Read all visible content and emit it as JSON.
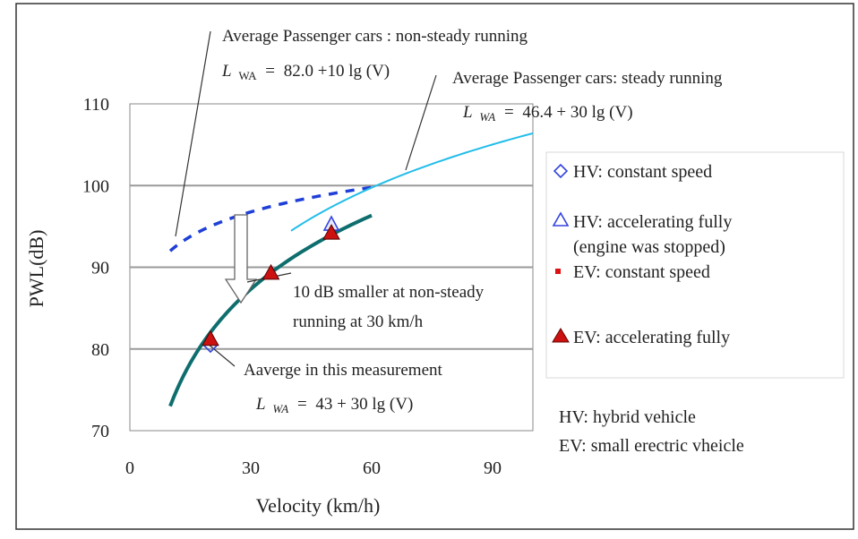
{
  "chart_data": {
    "type": "line",
    "xlabel": "Velocity (km/h)",
    "ylabel": "PWL(dB)",
    "xlim": [
      0,
      100
    ],
    "ylim": [
      70,
      110
    ],
    "x_ticks": [
      0,
      30,
      60,
      90
    ],
    "y_ticks": [
      70,
      80,
      90,
      100,
      110
    ],
    "grid": "horizontal",
    "legend_position": "right",
    "curves": [
      {
        "id": "nonsteady",
        "x_range": [
          10,
          60
        ],
        "intercept": 82.0,
        "slope": 10,
        "style": "dotted",
        "color": "#1f3fd8"
      },
      {
        "id": "steady",
        "x_range": [
          40,
          100
        ],
        "intercept": 46.4,
        "slope": 30,
        "style": "solid",
        "color": "#22bdea"
      },
      {
        "id": "measured",
        "x_range": [
          10,
          60
        ],
        "intercept": 43,
        "slope": 30,
        "style": "solid",
        "color": "#0e6e6e"
      }
    ],
    "points": {
      "hv_constant": [
        [
          20,
          80.4
        ]
      ],
      "hv_accelerating": [
        [
          50,
          95.2
        ]
      ],
      "ev_constant": [],
      "ev_accelerating": [
        [
          20,
          81.2
        ],
        [
          35,
          89.3
        ],
        [
          50,
          94.2
        ]
      ]
    },
    "annotations": {
      "nonsteady_title": "Average Passenger cars : non-steady running",
      "nonsteady_formula": "82.0 +10 lg (V)",
      "steady_title": "Average Passenger cars: steady running",
      "steady_formula": "46.4 + 30 lg (V)",
      "reduction_line1": "10 dB smaller at non-steady",
      "reduction_line2": "running at 30 km/h",
      "measured_title": "Aaverge in this measurement",
      "measured_formula": "43 + 30 lg (V)",
      "formula_L": "L",
      "formula_sub_nonsteady": "WA",
      "formula_sub_steady": "WA",
      "formula_sub_measured": "WA",
      "formula_eq": "="
    },
    "legend": [
      {
        "marker": "diamond-open",
        "color": "#3344dd",
        "label": "HV: constant speed"
      },
      {
        "marker": "triangle-open",
        "color": "#3344dd",
        "label": "HV: accelerating fully",
        "label2": "(engine was stopped)"
      },
      {
        "marker": "square-filled",
        "color": "#dd1111",
        "label": "EV: constant speed"
      },
      {
        "marker": "triangle-filled",
        "color": "#cc1111",
        "label": "EV: accelerating fully"
      }
    ],
    "notes": [
      "HV: hybrid vehicle",
      "EV: small erectric vheicle"
    ]
  }
}
